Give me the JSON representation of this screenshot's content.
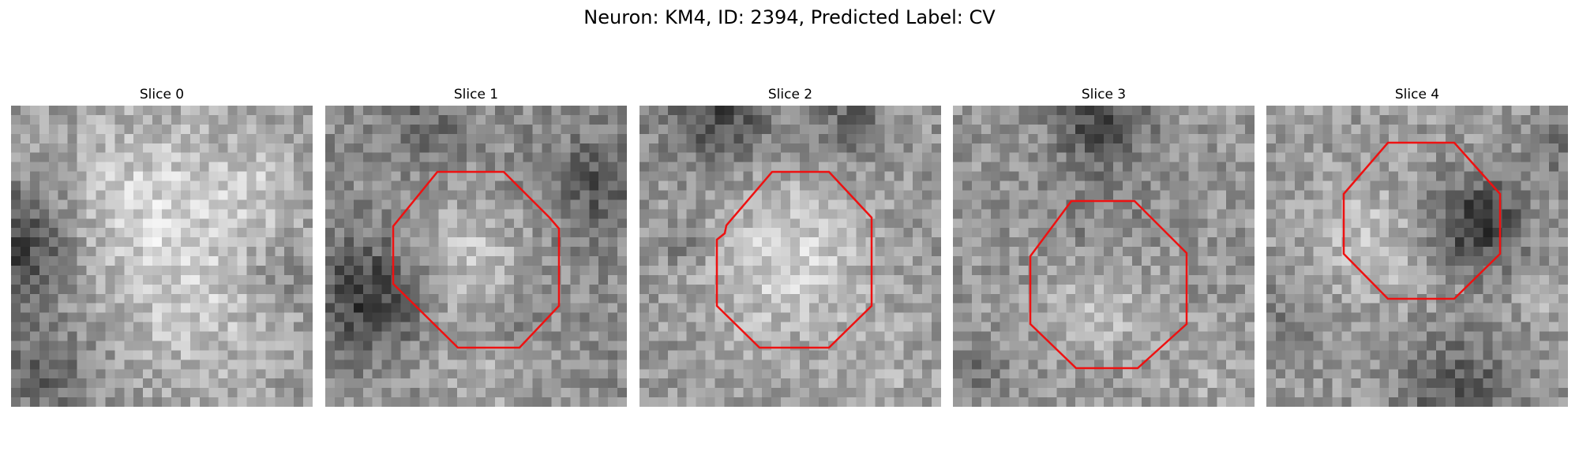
{
  "figure": {
    "title": "Neuron: KM4, ID: 2394, Predicted Label: CV"
  },
  "colors": {
    "background": "#ffffff",
    "roi_outline": "#ee1111",
    "image_colormap": "gray"
  },
  "slices": [
    {
      "label": "Slice 0",
      "has_roi_outline": false
    },
    {
      "label": "Slice 1",
      "has_roi_outline": true
    },
    {
      "label": "Slice 2",
      "has_roi_outline": true
    },
    {
      "label": "Slice 3",
      "has_roi_outline": true
    },
    {
      "label": "Slice 4",
      "has_roi_outline": true
    }
  ]
}
